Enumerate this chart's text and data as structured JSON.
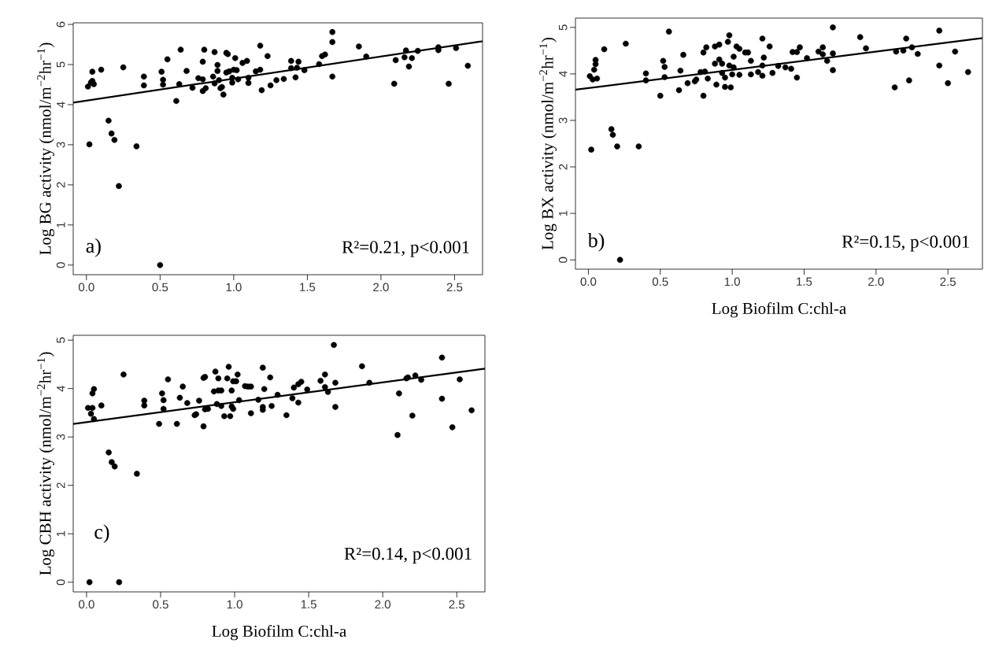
{
  "chart_data": [
    {
      "type": "scatter",
      "ylabel": "Log BG activity (nmol/m$^{−2}$hr$^{−1}$)",
      "annotations": [
        "a)",
        "R²=0.21, p<0.001"
      ],
      "xlim": [
        -0.09,
        2.69
      ],
      "ylim": [
        -0.24,
        6.04
      ],
      "xticks": [
        {
          "value": 0,
          "label": "0.0"
        },
        0.5,
        {
          "value": 1,
          "label": "1.0"
        },
        1.5,
        {
          "value": 2,
          "label": "2.0"
        },
        2.5
      ],
      "yticks": [
        0,
        1,
        2,
        3,
        4,
        5,
        6
      ],
      "series": [
        {
          "marker": "circle",
          "color": "#000000",
          "x": [
            0.01,
            0.04,
            0.03,
            0.05,
            0.04,
            0.1,
            0.25,
            0.39,
            0.39,
            0.51,
            0.52,
            0.52,
            0.55,
            0.61,
            0.63,
            0.64,
            0.68,
            0.72,
            0.76,
            0.79,
            0.79,
            0.79,
            0.8,
            0.81,
            0.86,
            0.87,
            0.87,
            0.89,
            0.89,
            0.9,
            0.91,
            0.92,
            0.93,
            0.95,
            0.95,
            0.96,
            0.97,
            0.99,
            0.99,
            1.0,
            1.01,
            1.02,
            1.03,
            1.06,
            1.09,
            1.1,
            1.1,
            1.15,
            1.18,
            1.18,
            1.19,
            1.23,
            1.25,
            1.29,
            1.34,
            1.39,
            1.39,
            1.42,
            1.43,
            1.44,
            1.48,
            1.58,
            1.6,
            1.62,
            1.67,
            1.67,
            1.67,
            1.85,
            1.9,
            2.09,
            2.1,
            2.16,
            2.17,
            2.19,
            2.21,
            2.25,
            2.39,
            2.39,
            2.46,
            2.51,
            2.59,
            0.02,
            0.15,
            0.17,
            0.19,
            0.34,
            0.22,
            0.5
          ],
          "values": [
            4.45,
            4.82,
            4.55,
            4.51,
            4.59,
            4.87,
            4.93,
            4.7,
            4.48,
            4.82,
            4.62,
            4.5,
            5.13,
            4.09,
            4.51,
            5.37,
            4.84,
            4.42,
            4.66,
            5.07,
            4.34,
            4.63,
            5.37,
            4.41,
            4.7,
            4.53,
            5.31,
            4.99,
            4.84,
            4.61,
            4.41,
            4.44,
            4.25,
            4.8,
            5.29,
            5.26,
            4.83,
            4.55,
            4.67,
            4.87,
            5.16,
            4.86,
            4.63,
            5.04,
            5.09,
            4.67,
            4.54,
            4.83,
            5.47,
            4.87,
            4.36,
            5.21,
            4.48,
            4.61,
            4.64,
            5.09,
            4.91,
            4.68,
            4.92,
            5.07,
            4.86,
            5.01,
            5.21,
            5.25,
            5.81,
            5.56,
            4.7,
            5.45,
            5.2,
            4.52,
            5.11,
            5.18,
            5.35,
            4.95,
            5.16,
            5.34,
            5.43,
            5.36,
            4.52,
            5.41,
            4.97,
            3.01,
            3.6,
            3.28,
            3.12,
            2.96,
            1.97,
            0
          ]
        },
        {
          "type": "line",
          "marker": "none",
          "color": "#000000",
          "x": [
            -0.09,
            2.69
          ],
          "values": [
            4.05,
            5.58
          ]
        }
      ]
    },
    {
      "type": "scatter",
      "xlabel": "Log Biofilm C:chl-a",
      "ylabel": "Log BX activity (nmol/m$^{−2}$hr$^{−1}$)",
      "annotations": [
        "b)",
        "R²=0.15, p<0.001"
      ],
      "xlim": [
        -0.09,
        2.74
      ],
      "ylim": [
        -0.2,
        5.2
      ],
      "xticks": [
        {
          "value": 0,
          "label": "0.0"
        },
        0.5,
        {
          "value": 1,
          "label": "1.0"
        },
        1.5,
        {
          "value": 2,
          "label": "2.0"
        },
        2.5
      ],
      "yticks": [
        0,
        1,
        2,
        3,
        4,
        5
      ],
      "series": [
        {
          "marker": "circle",
          "color": "#000000",
          "x": [
            0.01,
            0.02,
            0.03,
            0.04,
            0.05,
            0.05,
            0.06,
            0.11,
            0.16,
            0.17,
            0.2,
            0.26,
            0.35,
            0.4,
            0.4,
            0.5,
            0.52,
            0.53,
            0.53,
            0.56,
            0.63,
            0.64,
            0.66,
            0.69,
            0.74,
            0.75,
            0.78,
            0.8,
            0.8,
            0.81,
            0.82,
            0.83,
            0.88,
            0.89,
            0.88,
            0.91,
            0.91,
            0.93,
            0.93,
            0.95,
            0.95,
            0.97,
            0.98,
            0.98,
            0.99,
            1.0,
            1.01,
            1.01,
            1.03,
            1.05,
            1.05,
            1.09,
            1.11,
            1.13,
            1.13,
            1.18,
            1.21,
            1.21,
            1.21,
            1.22,
            1.26,
            1.28,
            1.32,
            1.37,
            1.41,
            1.42,
            1.45,
            1.45,
            1.47,
            1.52,
            1.6,
            1.63,
            1.63,
            1.66,
            1.7,
            1.7,
            1.7,
            1.89,
            1.93,
            2.13,
            2.14,
            2.19,
            2.21,
            2.23,
            2.25,
            2.29,
            2.44,
            2.44,
            2.5,
            2.55,
            2.64,
            0.22
          ],
          "values": [
            3.95,
            2.37,
            3.88,
            4.09,
            4.21,
            4.3,
            3.9,
            4.53,
            2.81,
            2.69,
            2.44,
            4.65,
            2.44,
            4.01,
            3.86,
            3.53,
            4.28,
            4.15,
            3.93,
            4.91,
            3.65,
            4.07,
            4.41,
            3.8,
            3.84,
            3.88,
            4.04,
            4.46,
            3.53,
            4.05,
            4.57,
            3.9,
            4.59,
            3.77,
            4.22,
            4.63,
            4.31,
            4.22,
            4.02,
            3.92,
            3.72,
            4.69,
            4.83,
            4.18,
            3.71,
            3.99,
            4.14,
            4.37,
            4.59,
            4.54,
            3.98,
            4.46,
            4.46,
            4.28,
            3.99,
            4.04,
            4.76,
            4.18,
            3.96,
            4.35,
            4.59,
            4.02,
            4.17,
            4.14,
            4.11,
            4.47,
            3.92,
            4.47,
            4.57,
            4.34,
            4.48,
            4.42,
            4.57,
            4.28,
            5.0,
            4.44,
            4.08,
            4.79,
            4.55,
            3.71,
            4.48,
            4.5,
            4.76,
            3.86,
            4.57,
            4.43,
            4.93,
            4.18,
            3.8,
            4.48,
            4.04,
            0
          ]
        },
        {
          "type": "line",
          "marker": "none",
          "color": "#000000",
          "x": [
            -0.09,
            2.74
          ],
          "values": [
            3.66,
            4.77
          ]
        }
      ]
    },
    {
      "type": "scatter",
      "xlabel": "Log Biofilm C:chl-a",
      "ylabel": "Log CBH activity (nmol/m$^{−2}$hr$^{−1}$)",
      "annotations": [
        "c)",
        "R²=0.14, p<0.001"
      ],
      "xlim": [
        -0.09,
        2.69
      ],
      "ylim": [
        -0.2,
        5.1
      ],
      "xticks": [
        {
          "value": 0,
          "label": "0.0"
        },
        0.5,
        {
          "value": 1,
          "label": "1.0"
        },
        1.5,
        {
          "value": 2,
          "label": "2.0"
        },
        2.5
      ],
      "yticks": [
        0,
        1,
        2,
        3,
        4,
        5
      ],
      "series": [
        {
          "marker": "circle",
          "color": "#000000",
          "x": [
            0.01,
            0.04,
            0.03,
            0.05,
            0.04,
            0.05,
            0.1,
            0.15,
            0.17,
            0.19,
            0.25,
            0.34,
            0.39,
            0.39,
            0.49,
            0.51,
            0.52,
            0.52,
            0.55,
            0.61,
            0.63,
            0.65,
            0.68,
            0.73,
            0.74,
            0.76,
            0.79,
            0.79,
            0.8,
            0.8,
            0.82,
            0.87,
            0.86,
            0.88,
            0.89,
            0.89,
            0.91,
            0.91,
            0.93,
            0.95,
            0.96,
            0.97,
            0.98,
            0.98,
            0.99,
            0.99,
            1.01,
            1.02,
            1.03,
            1.07,
            1.09,
            1.11,
            1.11,
            1.16,
            1.19,
            1.19,
            1.19,
            1.2,
            1.24,
            1.25,
            1.29,
            1.35,
            1.39,
            1.4,
            1.43,
            1.43,
            1.45,
            1.49,
            1.58,
            1.61,
            1.61,
            1.63,
            1.67,
            1.68,
            1.68,
            1.86,
            1.91,
            2.1,
            2.11,
            2.16,
            2.17,
            2.2,
            2.22,
            2.26,
            2.4,
            2.4,
            2.47,
            2.52,
            2.6,
            0.02,
            0.22
          ],
          "values": [
            3.6,
            3.6,
            3.48,
            3.37,
            3.9,
            3.99,
            3.65,
            2.68,
            2.48,
            2.39,
            4.29,
            2.24,
            3.75,
            3.65,
            3.27,
            3.9,
            3.76,
            3.58,
            4.19,
            3.27,
            3.81,
            4.04,
            3.7,
            3.45,
            3.47,
            3.75,
            4.22,
            3.22,
            4.24,
            3.57,
            3.58,
            4.35,
            3.94,
            3.68,
            4.21,
            3.96,
            3.96,
            3.64,
            3.43,
            4.21,
            4.45,
            3.43,
            3.63,
            3.96,
            3.58,
            4.15,
            4.15,
            4.29,
            3.76,
            4.05,
            4.04,
            4.04,
            3.49,
            3.77,
            4.43,
            3.56,
            3.62,
            3.99,
            4.23,
            3.64,
            3.87,
            3.45,
            3.8,
            4.02,
            3.71,
            4.09,
            4.14,
            3.98,
            4.16,
            4.03,
            4.29,
            3.93,
            4.9,
            4.12,
            3.62,
            4.46,
            4.12,
            3.04,
            3.9,
            4.21,
            4.23,
            3.44,
            4.27,
            4.18,
            4.64,
            3.79,
            3.2,
            4.19,
            3.55,
            0,
            0
          ]
        },
        {
          "type": "line",
          "marker": "none",
          "color": "#000000",
          "x": [
            -0.09,
            2.69
          ],
          "values": [
            3.27,
            4.41
          ]
        }
      ]
    }
  ]
}
